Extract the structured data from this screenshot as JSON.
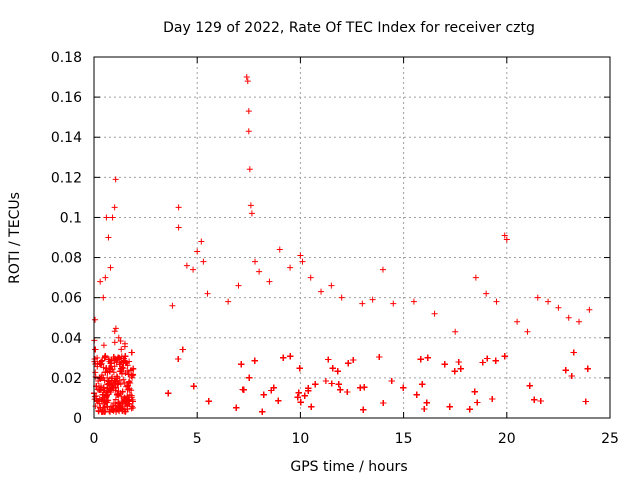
{
  "chart_data": {
    "type": "scatter",
    "title": "Day 129 of 2022, Rate Of TEC Index for receiver cztg",
    "xlabel": "GPS time / hours",
    "ylabel": "ROTI / TECUs",
    "xlim": [
      0,
      25
    ],
    "ylim": [
      0,
      0.18
    ],
    "xticks": [
      0,
      5,
      10,
      15,
      20,
      25
    ],
    "yticks": [
      0,
      0.02,
      0.04,
      0.06,
      0.08,
      0.1,
      0.12,
      0.14,
      0.16,
      0.18
    ],
    "grid": true,
    "marker": "+",
    "marker_color": "#ff0000",
    "series": [
      {
        "name": "ROTI",
        "x": [
          0.05,
          0.15,
          0.3,
          0.45,
          0.55,
          0.6,
          0.7,
          0.8,
          0.9,
          1.0,
          1.05,
          1.2,
          1.5,
          3.8,
          4.1,
          4.1,
          4.5,
          4.8,
          5.0,
          5.2,
          5.3,
          5.5,
          6.5,
          7.0,
          7.4,
          7.45,
          7.5,
          7.5,
          7.55,
          7.6,
          7.65,
          7.8,
          8.0,
          8.5,
          9.0,
          9.5,
          10.0,
          10.1,
          10.5,
          11.0,
          11.5,
          12.0,
          13.0,
          13.5,
          14.0,
          14.5,
          15.5,
          16.5,
          17.5,
          18.5,
          19.0,
          19.5,
          19.9,
          20.0,
          20.5,
          21.0,
          21.5,
          22.0,
          22.5,
          23.0,
          23.5,
          24.0
        ],
        "y": [
          0.049,
          0.03,
          0.068,
          0.06,
          0.07,
          0.1,
          0.09,
          0.075,
          0.1,
          0.105,
          0.119,
          0.04,
          0.037,
          0.056,
          0.105,
          0.095,
          0.076,
          0.074,
          0.083,
          0.088,
          0.078,
          0.062,
          0.058,
          0.066,
          0.17,
          0.168,
          0.153,
          0.143,
          0.124,
          0.106,
          0.102,
          0.078,
          0.073,
          0.068,
          0.084,
          0.075,
          0.081,
          0.078,
          0.07,
          0.063,
          0.066,
          0.06,
          0.057,
          0.059,
          0.074,
          0.057,
          0.058,
          0.052,
          0.043,
          0.07,
          0.062,
          0.058,
          0.091,
          0.089,
          0.048,
          0.043,
          0.06,
          0.058,
          0.055,
          0.05,
          0.048,
          0.054
        ]
      }
    ],
    "dense_background_description": "Dense band of values between 0.0 and about 0.03 from 0 to ~1.9 h and from ~3.6 h to ~24 h, gap between ~1.9 h and ~3.6 h"
  }
}
